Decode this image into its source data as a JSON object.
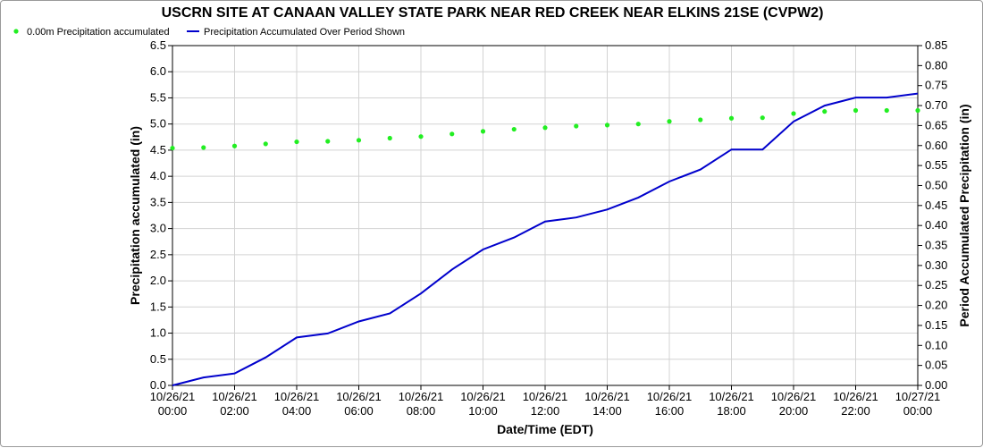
{
  "chart_data": {
    "type": "line",
    "title": "USCRN SITE AT CANAAN VALLEY STATE PARK NEAR RED CREEK NEAR ELKINS 21SE (CVPW2)",
    "xlabel": "Date/Time (EDT)",
    "ylabel_left": "Precipitation accumulated (in)",
    "ylabel_right": "Period Accumulated Precipitation (in)",
    "ylim_left": [
      0,
      6.5
    ],
    "ylim_right": [
      0,
      0.85
    ],
    "yticks_left": [
      "0.0",
      "0.5",
      "1.0",
      "1.5",
      "2.0",
      "2.5",
      "3.0",
      "3.5",
      "4.0",
      "4.5",
      "5.0",
      "5.5",
      "6.0",
      "6.5"
    ],
    "yticks_right": [
      "0.00",
      "0.05",
      "0.10",
      "0.15",
      "0.20",
      "0.25",
      "0.30",
      "0.35",
      "0.40",
      "0.45",
      "0.50",
      "0.55",
      "0.60",
      "0.65",
      "0.70",
      "0.75",
      "0.80",
      "0.85"
    ],
    "xticks": [
      {
        "date": "10/26/21",
        "time": "00:00"
      },
      {
        "date": "10/26/21",
        "time": "02:00"
      },
      {
        "date": "10/26/21",
        "time": "04:00"
      },
      {
        "date": "10/26/21",
        "time": "06:00"
      },
      {
        "date": "10/26/21",
        "time": "08:00"
      },
      {
        "date": "10/26/21",
        "time": "10:00"
      },
      {
        "date": "10/26/21",
        "time": "12:00"
      },
      {
        "date": "10/26/21",
        "time": "14:00"
      },
      {
        "date": "10/26/21",
        "time": "16:00"
      },
      {
        "date": "10/26/21",
        "time": "18:00"
      },
      {
        "date": "10/26/21",
        "time": "20:00"
      },
      {
        "date": "10/26/21",
        "time": "22:00"
      },
      {
        "date": "10/27/21",
        "time": "00:00"
      }
    ],
    "grid": true,
    "legend_placement": "top-left",
    "series": [
      {
        "name": "0.00m Precipitation accumulated",
        "axis": "left",
        "style": "dots",
        "color": "#22ee22",
        "hours": [
          0,
          1,
          2,
          3,
          4,
          5,
          6,
          7,
          8,
          9,
          10,
          11,
          12,
          13,
          14,
          15,
          16,
          17,
          18,
          19,
          20,
          21,
          22,
          23,
          24
        ],
        "values": [
          4.54,
          4.55,
          4.58,
          4.62,
          4.66,
          4.67,
          4.69,
          4.73,
          4.76,
          4.81,
          4.86,
          4.9,
          4.93,
          4.96,
          4.98,
          5.0,
          5.05,
          5.08,
          5.11,
          5.12,
          5.2,
          5.24,
          5.26,
          5.26,
          5.26
        ]
      },
      {
        "name": "Precipitation Accumulated Over Period Shown",
        "axis": "right",
        "style": "line",
        "color": "#0000cc",
        "hours": [
          0,
          1,
          2,
          3,
          4,
          5,
          6,
          7,
          8,
          9,
          10,
          11,
          12,
          13,
          14,
          15,
          16,
          17,
          18,
          19,
          20,
          21,
          22,
          23,
          24
        ],
        "values": [
          0.0,
          0.02,
          0.03,
          0.07,
          0.12,
          0.13,
          0.16,
          0.18,
          0.23,
          0.29,
          0.34,
          0.37,
          0.41,
          0.42,
          0.44,
          0.47,
          0.51,
          0.54,
          0.59,
          0.59,
          0.66,
          0.7,
          0.72,
          0.72,
          0.73
        ]
      }
    ]
  }
}
